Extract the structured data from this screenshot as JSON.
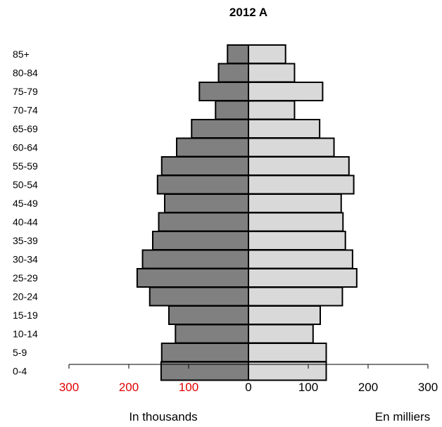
{
  "chart_data": {
    "type": "bar",
    "orientation": "horizontal-population-pyramid",
    "title": "2012 A",
    "categories": [
      "85+",
      "80-84",
      "75-79",
      "70-74",
      "65-69",
      "60-64",
      "55-59",
      "50-54",
      "45-49",
      "40-44",
      "35-39",
      "30-34",
      "25-29",
      "20-24",
      "15-19",
      "10-14",
      "5-9",
      "0-4"
    ],
    "series": [
      {
        "side": "left",
        "color": "#808080",
        "values": [
          35,
          50,
          82,
          55,
          95,
          120,
          145,
          152,
          140,
          150,
          160,
          177,
          186,
          165,
          133,
          122,
          145,
          146
        ]
      },
      {
        "side": "right",
        "color": "#d9d9d9",
        "values": [
          62,
          77,
          124,
          77,
          119,
          143,
          168,
          176,
          155,
          158,
          162,
          174,
          181,
          157,
          120,
          108,
          130,
          130
        ]
      }
    ],
    "xlim": [
      -300,
      300
    ],
    "x_ticks": [
      {
        "value": -300,
        "label": "300",
        "color": "#e00000"
      },
      {
        "value": -200,
        "label": "200",
        "color": "#e00000"
      },
      {
        "value": -100,
        "label": "100",
        "color": "#e00000"
      },
      {
        "value": 0,
        "label": "0",
        "color": "#000000"
      },
      {
        "value": 100,
        "label": "100",
        "color": "#000000"
      },
      {
        "value": 200,
        "label": "200",
        "color": "#000000"
      },
      {
        "value": 300,
        "label": "300",
        "color": "#000000"
      }
    ],
    "xlabel_left": "In thousands",
    "xlabel_right": "En milliers",
    "grid": false,
    "legend": "none"
  }
}
